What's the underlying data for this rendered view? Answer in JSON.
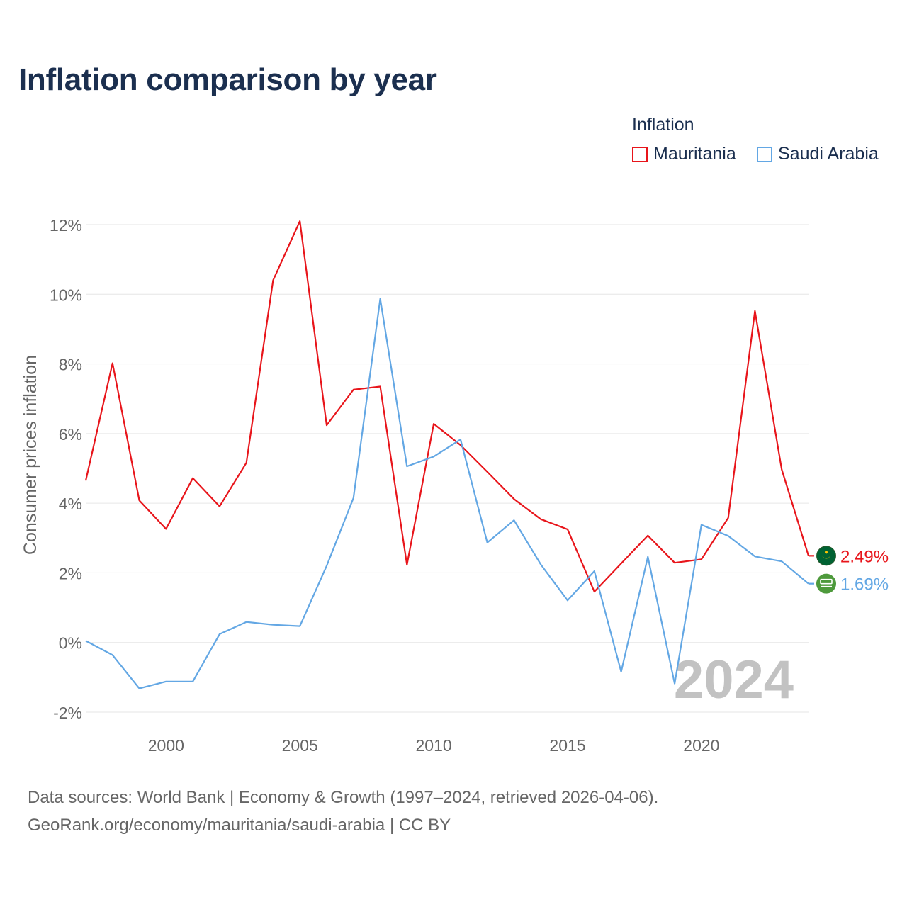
{
  "chart_data": {
    "type": "line",
    "title": "Inflation comparison by year",
    "legend_title": "Inflation",
    "ylabel": "Consumer prices inflation",
    "xlabel": "",
    "x": [
      1997,
      1998,
      1999,
      2000,
      2001,
      2002,
      2003,
      2004,
      2005,
      2006,
      2007,
      2008,
      2009,
      2010,
      2011,
      2012,
      2013,
      2014,
      2015,
      2016,
      2017,
      2018,
      2019,
      2020,
      2021,
      2022,
      2023,
      2024
    ],
    "xlim": [
      1997,
      2024
    ],
    "ylim": [
      -2.5,
      12.5
    ],
    "x_ticks": [
      2000,
      2005,
      2010,
      2015,
      2020
    ],
    "x_tick_labels": [
      "2000",
      "2005",
      "2010",
      "2015",
      "2020"
    ],
    "y_ticks": [
      -2,
      0,
      2,
      4,
      6,
      8,
      10,
      12
    ],
    "y_tick_labels": [
      "-2%",
      "0%",
      "2%",
      "4%",
      "6%",
      "8%",
      "10%",
      "12%"
    ],
    "grid": true,
    "legend_position": "top-right",
    "year_watermark": "2024",
    "series": [
      {
        "name": "Mauritania",
        "color": "#e8151b",
        "end_label": "2.49%",
        "flag_icon": "mauritania-flag-icon",
        "values": [
          4.65,
          8.02,
          4.08,
          3.26,
          4.72,
          3.91,
          5.16,
          10.4,
          12.1,
          6.24,
          7.26,
          7.35,
          2.23,
          6.28,
          5.67,
          4.9,
          4.12,
          3.54,
          3.25,
          1.46,
          2.27,
          3.07,
          2.29,
          2.39,
          3.58,
          9.52,
          4.97,
          2.49
        ]
      },
      {
        "name": "Saudi Arabia",
        "color": "#63a7e4",
        "end_label": "1.69%",
        "flag_icon": "saudi-arabia-flag-icon",
        "values": [
          0.05,
          -0.36,
          -1.32,
          -1.12,
          -1.12,
          0.24,
          0.59,
          0.51,
          0.47,
          2.2,
          4.15,
          9.87,
          5.06,
          5.34,
          5.83,
          2.87,
          3.51,
          2.24,
          1.21,
          2.05,
          -0.84,
          2.46,
          -1.18,
          3.38,
          3.06,
          2.47,
          2.33,
          1.69
        ]
      }
    ]
  },
  "source": {
    "line1": "Data sources: World Bank | Economy & Growth (1997–2024, retrieved 2026-04-06).",
    "line2": "GeoRank.org/economy/mauritania/saudi-arabia | CC BY"
  }
}
